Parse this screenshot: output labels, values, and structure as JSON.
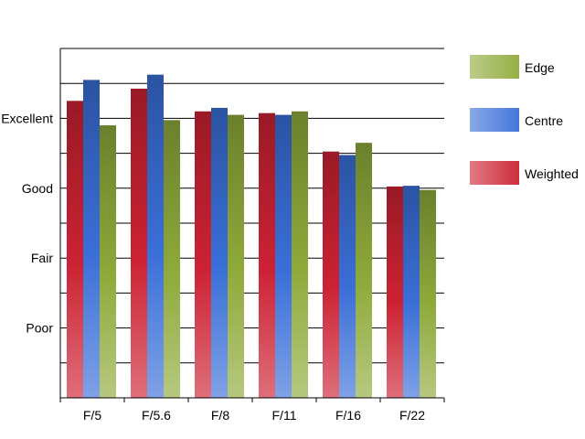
{
  "chart_data": {
    "type": "bar",
    "categories": [
      "F/5",
      "F/5.6",
      "F/8",
      "F/11",
      "F/16",
      "F/22"
    ],
    "y_tick_labels": [
      {
        "label": "Poor",
        "value": 2
      },
      {
        "label": "Fair",
        "value": 4
      },
      {
        "label": "Good",
        "value": 6
      },
      {
        "label": "Excellent",
        "value": 8
      }
    ],
    "ylim": [
      0,
      10
    ],
    "grid": true,
    "legend_position": "right",
    "series": [
      {
        "name": "Weighted",
        "color": "#cc2233",
        "values": [
          8.5,
          8.85,
          8.2,
          8.15,
          7.05,
          6.05
        ]
      },
      {
        "name": "Centre",
        "color": "#3a6fd8",
        "values": [
          9.1,
          9.25,
          8.3,
          8.1,
          6.95,
          6.07
        ]
      },
      {
        "name": "Edge",
        "color": "#8faa3a",
        "values": [
          7.8,
          7.95,
          8.1,
          8.2,
          7.3,
          5.95
        ]
      }
    ],
    "legend_order": [
      "Edge",
      "Centre",
      "Weighted"
    ]
  }
}
